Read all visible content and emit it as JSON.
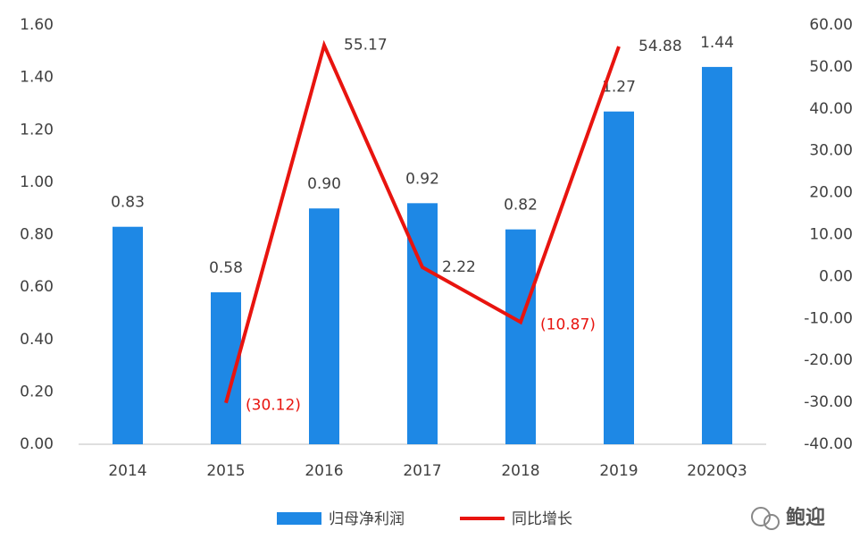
{
  "chart_data": {
    "type": "bar",
    "categories": [
      "2014",
      "2015",
      "2016",
      "2017",
      "2018",
      "2019",
      "2020Q3"
    ],
    "series": [
      {
        "name": "归母净利润",
        "type": "bar",
        "color": "#1e88e5",
        "values": [
          0.83,
          0.58,
          0.9,
          0.92,
          0.82,
          1.27,
          1.44
        ],
        "value_labels": [
          "0.83",
          "0.58",
          "0.90",
          "0.92",
          "0.82",
          "1.27",
          "1.44"
        ]
      },
      {
        "name": "同比增长",
        "type": "line",
        "axis": "y2",
        "color": "#e8140f",
        "values": [
          null,
          -30.12,
          55.17,
          2.22,
          -10.87,
          54.88,
          null
        ],
        "value_labels": [
          null,
          "(30.12)",
          "55.17",
          "2.22",
          "(10.87)",
          "54.88",
          null
        ]
      }
    ],
    "ylim": [
      0,
      1.6
    ],
    "yticks": [
      {
        "value": 0,
        "label": "0.00"
      },
      {
        "value": 0.2,
        "label": "0.20"
      },
      {
        "value": 0.4,
        "label": "0.40"
      },
      {
        "value": 0.6,
        "label": "0.60"
      },
      {
        "value": 0.8,
        "label": "0.80"
      },
      {
        "value": 1.0,
        "label": "1.00"
      },
      {
        "value": 1.2,
        "label": "1.20"
      },
      {
        "value": 1.4,
        "label": "1.40"
      },
      {
        "value": 1.6,
        "label": "1.60"
      }
    ],
    "y2lim": [
      -40,
      60
    ],
    "y2ticks": [
      {
        "value": -40,
        "label": "-40.00"
      },
      {
        "value": -30,
        "label": "-30.00"
      },
      {
        "value": -20,
        "label": "-20.00"
      },
      {
        "value": -10,
        "label": "-10.00"
      },
      {
        "value": 0,
        "label": "0.00"
      },
      {
        "value": 10,
        "label": "10.00"
      },
      {
        "value": 20,
        "label": "20.00"
      },
      {
        "value": 30,
        "label": "30.00"
      },
      {
        "value": 40,
        "label": "40.00"
      },
      {
        "value": 50,
        "label": "50.00"
      },
      {
        "value": 60,
        "label": "60.00"
      }
    ],
    "grid": false,
    "legend": "bottom",
    "watermark": "鲍迎"
  }
}
